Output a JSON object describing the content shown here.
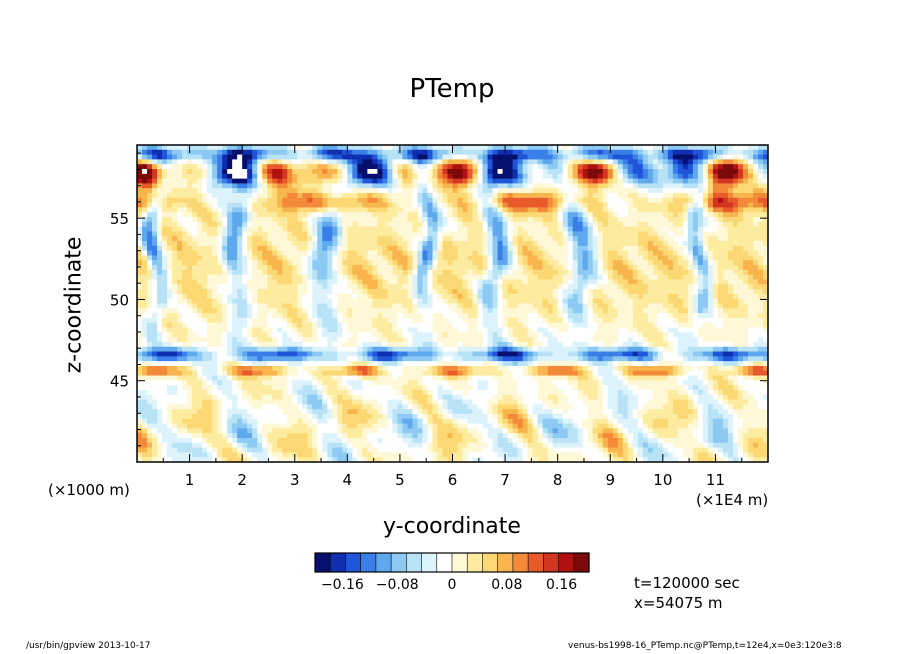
{
  "chart_data": {
    "type": "heatmap",
    "title": "PTemp",
    "xlabel": "y-coordinate",
    "ylabel": "z-coordinate",
    "x_unit_note": "(×1E4 m)",
    "y_unit_note": "(×1000 m)",
    "xlim": [
      0,
      12
    ],
    "ylim": [
      40,
      59.5
    ],
    "x_ticks": [
      1,
      2,
      3,
      4,
      5,
      6,
      7,
      8,
      9,
      10,
      11
    ],
    "x_tick_labels": [
      "1",
      "2",
      "3",
      "4",
      "5",
      "6",
      "7",
      "8",
      "9",
      "10",
      "11"
    ],
    "y_ticks": [
      45,
      50,
      55
    ],
    "y_tick_labels": [
      "45",
      "50",
      "55"
    ],
    "colorbar": {
      "range": [
        -0.2,
        0.2
      ],
      "tick_values": [
        -0.16,
        -0.08,
        0,
        0.08,
        0.16
      ],
      "tick_labels": [
        "−0.16",
        "−0.08",
        "0",
        "0.08",
        "0.16"
      ],
      "colors": [
        "#08106e",
        "#0f2fb0",
        "#1f55d8",
        "#3a7fe8",
        "#5fa8ee",
        "#8cc9f3",
        "#b8e3f7",
        "#ddf3fb",
        "#ffffff",
        "#fff8d6",
        "#fdeca0",
        "#fbd873",
        "#f8b54e",
        "#f28a39",
        "#e85a2a",
        "#d23520",
        "#b01010",
        "#7d0a0a"
      ]
    },
    "notes": {
      "time": "t=120000 sec",
      "position": "x=54075 m"
    }
  },
  "footer": {
    "left": "/usr/bin/gpview   2013-10-17",
    "right": "venus-bs1998-16_PTemp.nc@PTemp,t=12e4,x=0e3:120e3:8"
  }
}
